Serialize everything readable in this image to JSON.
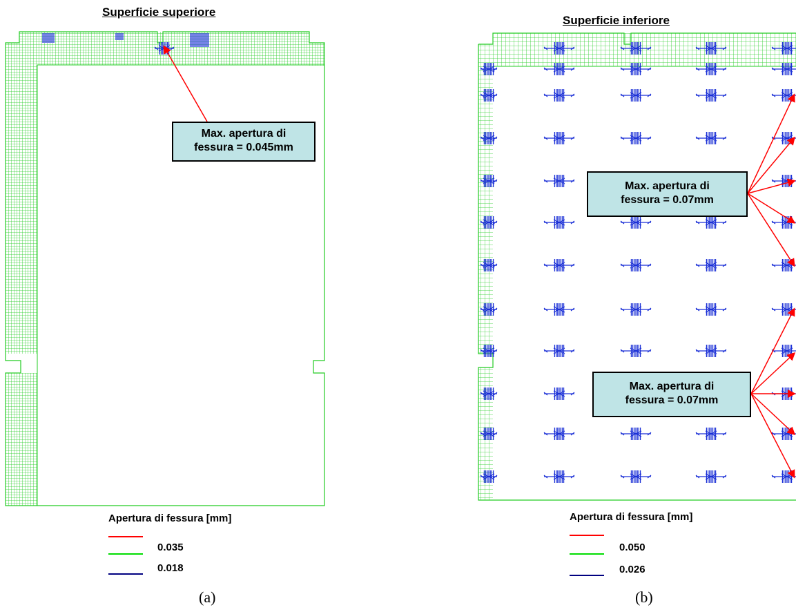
{
  "panels": [
    {
      "title": "Superficie superiore",
      "callouts": [
        {
          "line1": "Max. apertura di",
          "line2": "fessura = 0.045mm"
        }
      ],
      "legend": {
        "title": "Apertura di fessura [mm]",
        "items": [
          {
            "value": "0.035",
            "color": "#ff0000"
          },
          {
            "value": "",
            "color": "#00dd00"
          },
          {
            "value": "0.018",
            "color": "#000080"
          }
        ]
      },
      "caption": "(a)"
    },
    {
      "title": "Superficie inferiore",
      "callouts": [
        {
          "line1": "Max. apertura di",
          "line2": "fessura = 0.07mm"
        },
        {
          "line1": "Max. apertura di",
          "line2": "fessura = 0.07mm"
        }
      ],
      "legend": {
        "title": "Apertura di fessura [mm]",
        "items": [
          {
            "value": "0.050",
            "color": "#ff0000"
          },
          {
            "value": "",
            "color": "#00dd00"
          },
          {
            "value": "0.026",
            "color": "#000080"
          }
        ]
      },
      "caption": "(b)"
    }
  ],
  "colors": {
    "mesh": "#22cc22",
    "crack": "#1a2fd6",
    "arrow": "#ff0000",
    "callout_fill": "#bfe4e6"
  }
}
